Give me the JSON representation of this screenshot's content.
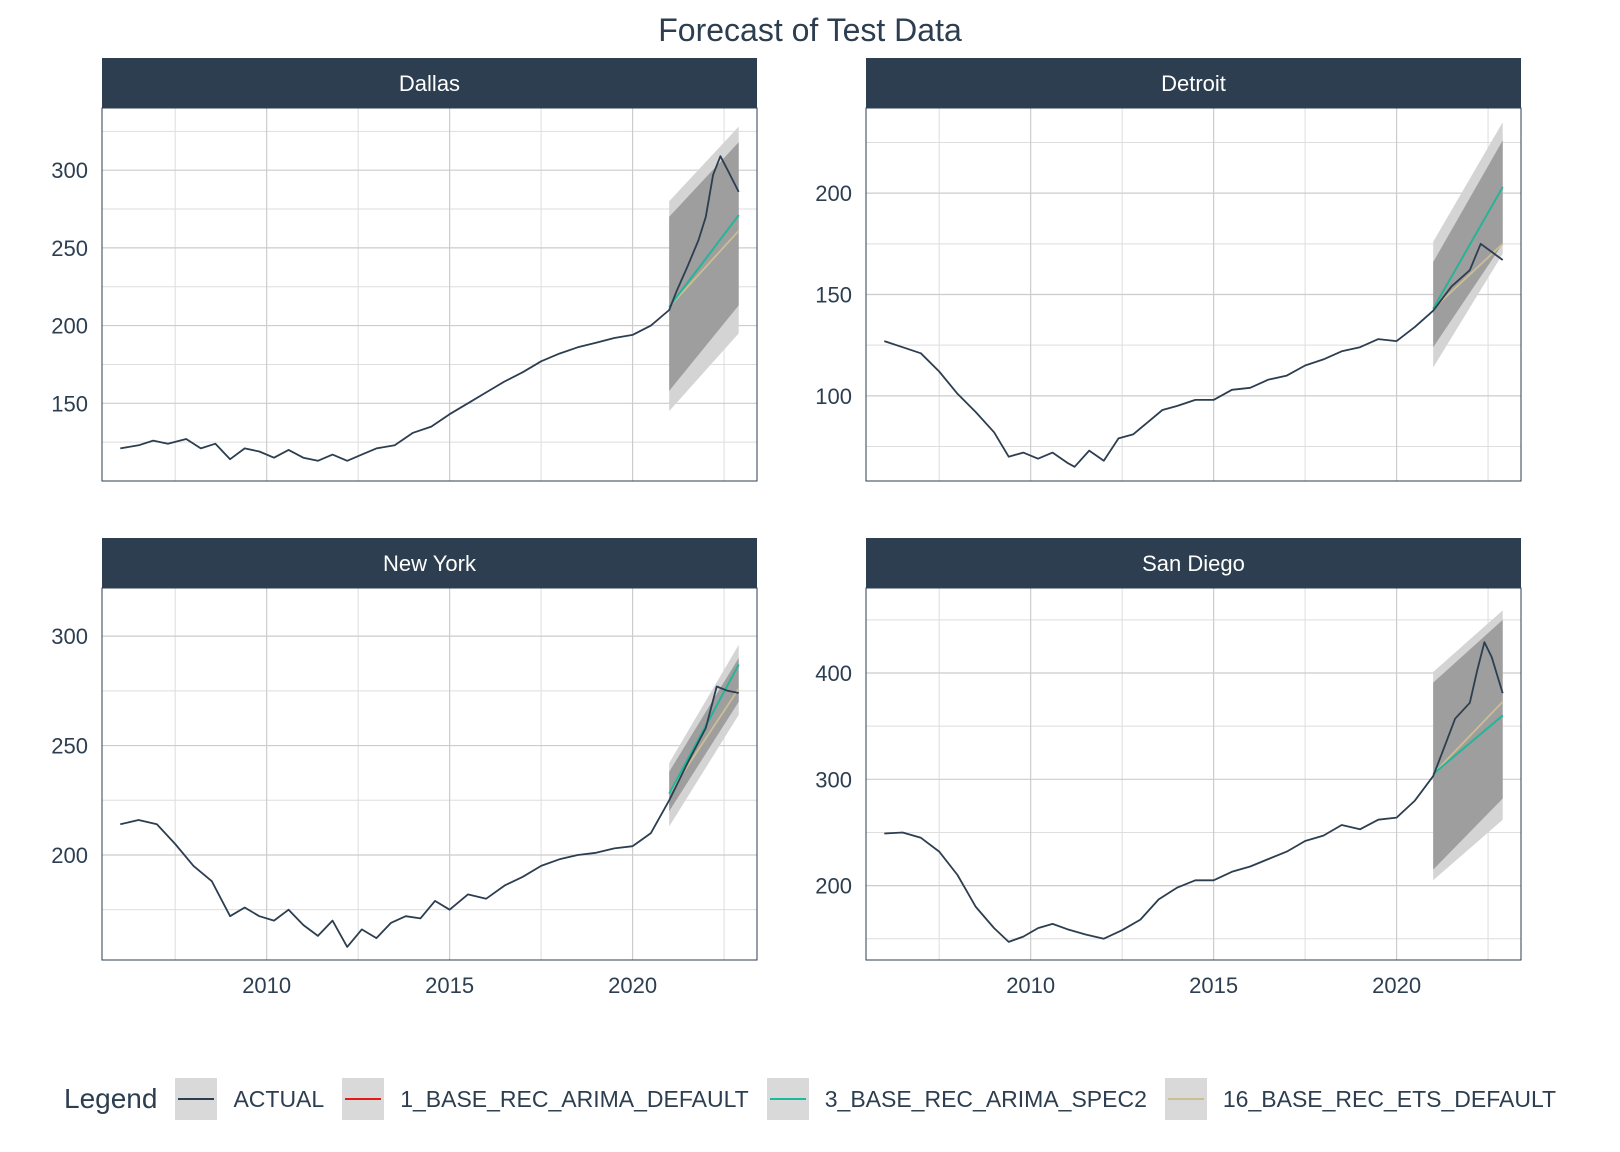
{
  "chart_data": {
    "type": "line",
    "title": "Forecast of Test Data",
    "xlabel": "",
    "ylabel": "",
    "grid": true,
    "legend_placement": "bottom",
    "x_ticks": [
      2010,
      2015,
      2020
    ],
    "x_range": [
      2005.5,
      2023.4
    ],
    "forecast_start": 2021.0,
    "forecast_end": 2022.9,
    "colors": {
      "ACTUAL": "#2c3e50",
      "1_BASE_REC_ARIMA_DEFAULT": "#e31a1c",
      "3_BASE_REC_ARIMA_SPEC2": "#18bc9c",
      "16_BASE_REC_ETS_DEFAULT": "#ccbe93",
      "strip_bg": "#2c3e50",
      "band_outer": "#d4d4d4",
      "band_inner": "#9e9e9e"
    },
    "legend": {
      "title": "Legend",
      "entries": [
        "ACTUAL",
        "1_BASE_REC_ARIMA_DEFAULT",
        "3_BASE_REC_ARIMA_SPEC2",
        "16_BASE_REC_ETS_DEFAULT"
      ]
    },
    "facets": [
      {
        "name": "Dallas",
        "ylim": [
          100,
          340
        ],
        "y_ticks": [
          150,
          200,
          250,
          300
        ],
        "actual": [
          [
            2006.0,
            121
          ],
          [
            2006.5,
            123
          ],
          [
            2006.9,
            126
          ],
          [
            2007.3,
            124
          ],
          [
            2007.8,
            127
          ],
          [
            2008.2,
            121
          ],
          [
            2008.6,
            124
          ],
          [
            2009.0,
            114
          ],
          [
            2009.4,
            121
          ],
          [
            2009.8,
            119
          ],
          [
            2010.2,
            115
          ],
          [
            2010.6,
            120
          ],
          [
            2011.0,
            115
          ],
          [
            2011.4,
            113
          ],
          [
            2011.8,
            117
          ],
          [
            2012.2,
            113
          ],
          [
            2012.6,
            117
          ],
          [
            2013.0,
            121
          ],
          [
            2013.5,
            123
          ],
          [
            2014.0,
            131
          ],
          [
            2014.5,
            135
          ],
          [
            2015.0,
            143
          ],
          [
            2015.5,
            150
          ],
          [
            2016.0,
            157
          ],
          [
            2016.5,
            164
          ],
          [
            2017.0,
            170
          ],
          [
            2017.5,
            177
          ],
          [
            2018.0,
            182
          ],
          [
            2018.5,
            186
          ],
          [
            2019.0,
            189
          ],
          [
            2019.5,
            192
          ],
          [
            2020.0,
            194
          ],
          [
            2020.5,
            200
          ],
          [
            2021.0,
            210
          ],
          [
            2021.2,
            222
          ],
          [
            2021.5,
            238
          ],
          [
            2021.8,
            255
          ],
          [
            2022.0,
            270
          ],
          [
            2022.2,
            297
          ],
          [
            2022.4,
            309
          ],
          [
            2022.6,
            300
          ],
          [
            2022.9,
            286
          ]
        ],
        "arima_spec2": [
          [
            2021.0,
            212
          ],
          [
            2022.9,
            271
          ]
        ],
        "arima_default": [
          [
            2021.0,
            212
          ],
          [
            2022.9,
            271
          ]
        ],
        "ets": [
          [
            2021.0,
            212
          ],
          [
            2022.9,
            261
          ]
        ],
        "band_outer": [
          [
            2021.0,
            145,
            280
          ],
          [
            2022.9,
            195,
            328
          ]
        ],
        "band_inner": [
          [
            2021.0,
            158,
            270
          ],
          [
            2022.9,
            213,
            318
          ]
        ]
      },
      {
        "name": "Detroit",
        "ylim": [
          58,
          242
        ],
        "y_ticks": [
          100,
          150,
          200
        ],
        "actual": [
          [
            2006.0,
            127
          ],
          [
            2006.5,
            124
          ],
          [
            2007.0,
            121
          ],
          [
            2007.5,
            112
          ],
          [
            2008.0,
            101
          ],
          [
            2008.5,
            92
          ],
          [
            2009.0,
            82
          ],
          [
            2009.4,
            70
          ],
          [
            2009.8,
            72
          ],
          [
            2010.2,
            69
          ],
          [
            2010.6,
            72
          ],
          [
            2011.0,
            67
          ],
          [
            2011.2,
            65
          ],
          [
            2011.6,
            73
          ],
          [
            2012.0,
            68
          ],
          [
            2012.4,
            79
          ],
          [
            2012.8,
            81
          ],
          [
            2013.2,
            87
          ],
          [
            2013.6,
            93
          ],
          [
            2014.0,
            95
          ],
          [
            2014.5,
            98
          ],
          [
            2015.0,
            98
          ],
          [
            2015.5,
            103
          ],
          [
            2016.0,
            104
          ],
          [
            2016.5,
            108
          ],
          [
            2017.0,
            110
          ],
          [
            2017.5,
            115
          ],
          [
            2018.0,
            118
          ],
          [
            2018.5,
            122
          ],
          [
            2019.0,
            124
          ],
          [
            2019.5,
            128
          ],
          [
            2020.0,
            127
          ],
          [
            2020.5,
            134
          ],
          [
            2021.0,
            142
          ],
          [
            2021.5,
            154
          ],
          [
            2022.0,
            162
          ],
          [
            2022.3,
            175
          ],
          [
            2022.6,
            171
          ],
          [
            2022.9,
            167
          ]
        ],
        "arima_spec2": [
          [
            2021.0,
            143
          ],
          [
            2022.9,
            203
          ]
        ],
        "arima_default": [
          [
            2021.0,
            143
          ],
          [
            2022.9,
            203
          ]
        ],
        "ets": [
          [
            2021.0,
            143
          ],
          [
            2022.9,
            175
          ]
        ],
        "band_outer": [
          [
            2021.0,
            114,
            176
          ],
          [
            2022.9,
            170,
            235
          ]
        ],
        "band_inner": [
          [
            2021.0,
            124,
            166
          ],
          [
            2022.9,
            175,
            226
          ]
        ]
      },
      {
        "name": "New York",
        "ylim": [
          152,
          322
        ],
        "y_ticks": [
          200,
          250,
          300
        ],
        "actual": [
          [
            2006.0,
            214
          ],
          [
            2006.5,
            216
          ],
          [
            2007.0,
            214
          ],
          [
            2007.5,
            205
          ],
          [
            2008.0,
            195
          ],
          [
            2008.5,
            188
          ],
          [
            2009.0,
            172
          ],
          [
            2009.4,
            176
          ],
          [
            2009.8,
            172
          ],
          [
            2010.2,
            170
          ],
          [
            2010.6,
            175
          ],
          [
            2011.0,
            168
          ],
          [
            2011.4,
            163
          ],
          [
            2011.8,
            170
          ],
          [
            2012.2,
            158
          ],
          [
            2012.6,
            166
          ],
          [
            2013.0,
            162
          ],
          [
            2013.4,
            169
          ],
          [
            2013.8,
            172
          ],
          [
            2014.2,
            171
          ],
          [
            2014.6,
            179
          ],
          [
            2015.0,
            175
          ],
          [
            2015.5,
            182
          ],
          [
            2016.0,
            180
          ],
          [
            2016.5,
            186
          ],
          [
            2017.0,
            190
          ],
          [
            2017.5,
            195
          ],
          [
            2018.0,
            198
          ],
          [
            2018.5,
            200
          ],
          [
            2019.0,
            201
          ],
          [
            2019.5,
            203
          ],
          [
            2020.0,
            204
          ],
          [
            2020.5,
            210
          ],
          [
            2021.0,
            225
          ],
          [
            2021.5,
            242
          ],
          [
            2022.0,
            258
          ],
          [
            2022.3,
            277
          ],
          [
            2022.6,
            275
          ],
          [
            2022.9,
            274
          ]
        ],
        "arima_spec2": [
          [
            2021.0,
            228
          ],
          [
            2022.9,
            287
          ]
        ],
        "arima_default": [
          [
            2021.0,
            228
          ],
          [
            2022.9,
            287
          ]
        ],
        "ets": [
          [
            2021.0,
            228
          ],
          [
            2022.9,
            276
          ]
        ],
        "band_outer": [
          [
            2021.0,
            213,
            242
          ],
          [
            2022.9,
            264,
            296
          ]
        ],
        "band_inner": [
          [
            2021.0,
            220,
            238
          ],
          [
            2022.9,
            270,
            290
          ]
        ]
      },
      {
        "name": "San Diego",
        "ylim": [
          130,
          480
        ],
        "y_ticks": [
          200,
          300,
          400
        ],
        "actual": [
          [
            2006.0,
            249
          ],
          [
            2006.5,
            250
          ],
          [
            2007.0,
            245
          ],
          [
            2007.5,
            232
          ],
          [
            2008.0,
            210
          ],
          [
            2008.5,
            180
          ],
          [
            2009.0,
            160
          ],
          [
            2009.4,
            147
          ],
          [
            2009.8,
            152
          ],
          [
            2010.2,
            160
          ],
          [
            2010.6,
            164
          ],
          [
            2011.0,
            159
          ],
          [
            2011.5,
            154
          ],
          [
            2012.0,
            150
          ],
          [
            2012.5,
            158
          ],
          [
            2013.0,
            168
          ],
          [
            2013.5,
            187
          ],
          [
            2014.0,
            198
          ],
          [
            2014.5,
            205
          ],
          [
            2015.0,
            205
          ],
          [
            2015.5,
            213
          ],
          [
            2016.0,
            218
          ],
          [
            2016.5,
            225
          ],
          [
            2017.0,
            232
          ],
          [
            2017.5,
            242
          ],
          [
            2018.0,
            247
          ],
          [
            2018.5,
            257
          ],
          [
            2019.0,
            253
          ],
          [
            2019.5,
            262
          ],
          [
            2020.0,
            264
          ],
          [
            2020.5,
            280
          ],
          [
            2021.0,
            303
          ],
          [
            2021.3,
            330
          ],
          [
            2021.6,
            357
          ],
          [
            2022.0,
            372
          ],
          [
            2022.2,
            402
          ],
          [
            2022.4,
            429
          ],
          [
            2022.6,
            415
          ],
          [
            2022.9,
            381
          ]
        ],
        "arima_spec2": [
          [
            2021.0,
            305
          ],
          [
            2022.9,
            360
          ]
        ],
        "arima_default": [
          [
            2021.0,
            305
          ],
          [
            2022.9,
            360
          ]
        ],
        "ets": [
          [
            2021.0,
            305
          ],
          [
            2022.9,
            373
          ]
        ],
        "band_outer": [
          [
            2021.0,
            205,
            401
          ],
          [
            2022.9,
            262,
            459
          ]
        ],
        "band_inner": [
          [
            2021.0,
            215,
            391
          ],
          [
            2022.9,
            282,
            450
          ]
        ]
      }
    ]
  }
}
